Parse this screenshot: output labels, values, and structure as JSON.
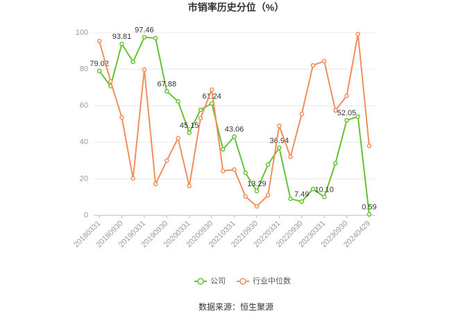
{
  "chart_data": {
    "type": "line",
    "title": "市销率历史分位（%）",
    "categories": [
      "20180331",
      null,
      "20180930",
      null,
      "20190331",
      null,
      "20190930",
      null,
      "20200331",
      null,
      "20200930",
      null,
      "20210331",
      null,
      "20210930",
      null,
      "20220331",
      null,
      "20220930",
      null,
      "20230331",
      null,
      "20230930",
      null,
      "20240429"
    ],
    "series": [
      {
        "name": "公司",
        "color": "#66c234",
        "values": [
          79.02,
          70.7,
          93.81,
          84,
          97.46,
          97,
          67.88,
          62.4,
          45.15,
          57.8,
          61.24,
          36.1,
          43.06,
          23.2,
          13.29,
          27.8,
          36.94,
          9.1,
          7.49,
          14.4,
          10.1,
          28.5,
          52.05,
          54,
          0.59
        ],
        "value_labels": [
          "79.02",
          null,
          "93.81",
          null,
          "97.46",
          null,
          "67.88",
          null,
          "45.15",
          null,
          "61.24",
          null,
          "43.06",
          null,
          "13.29",
          null,
          "36.94",
          null,
          "7.49",
          null,
          "10.10",
          null,
          "52.05",
          null,
          "0.59"
        ]
      },
      {
        "name": "行业中位数",
        "color": "#f28e5c",
        "values": [
          95.4,
          73.4,
          53.6,
          20.2,
          79.8,
          17.1,
          30,
          42.2,
          16,
          53.2,
          68.8,
          24.3,
          25.1,
          10.3,
          4.9,
          11,
          49,
          32,
          55.5,
          82.1,
          84.4,
          57.4,
          65.4,
          99.2,
          38
        ]
      }
    ],
    "ylim": [
      0,
      100
    ],
    "yticks": [
      0,
      20,
      40,
      60,
      80,
      100
    ],
    "grid": true,
    "legend": "bottom",
    "source": "数据来源：恒生聚源"
  }
}
